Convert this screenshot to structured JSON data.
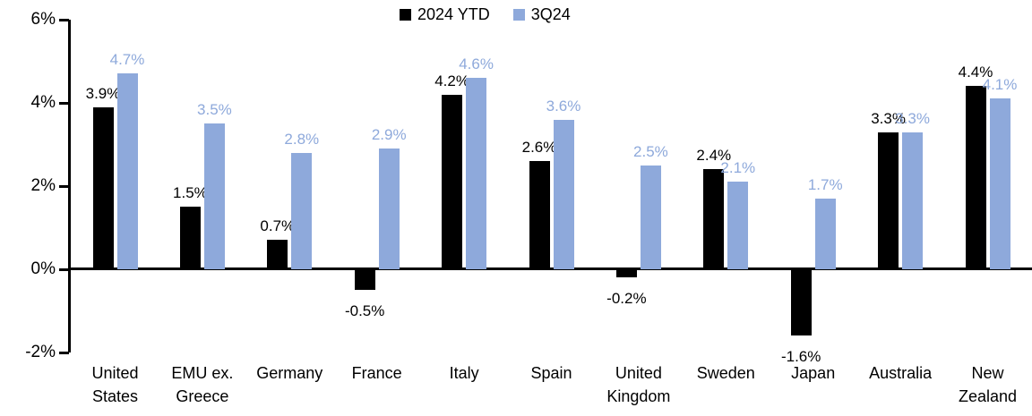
{
  "chart_data": {
    "type": "bar",
    "title": "",
    "xlabel": "",
    "ylabel": "",
    "categories": [
      "United States",
      "EMU ex. Greece",
      "Germany",
      "France",
      "Italy",
      "Spain",
      "United Kingdom",
      "Sweden",
      "Japan",
      "Australia",
      "New Zealand"
    ],
    "category_display": [
      "United\nStates",
      "EMU ex.\nGreece",
      "Germany",
      "France",
      "Italy",
      "Spain",
      "United\nKingdom",
      "Sweden",
      "Japan",
      "Australia",
      "New\nZealand"
    ],
    "series": [
      {
        "name": "2024 YTD",
        "color": "#000000",
        "values": [
          3.9,
          1.5,
          0.7,
          -0.5,
          4.2,
          2.6,
          -0.2,
          2.4,
          -1.6,
          3.3,
          4.4
        ],
        "labels": [
          "3.9%",
          "1.5%",
          "0.7%",
          "-0.5%",
          "4.2%",
          "2.6%",
          "-0.2%",
          "2.4%",
          "-1.6%",
          "3.3%",
          "4.4%"
        ]
      },
      {
        "name": "3Q24",
        "color": "#8EA9DB",
        "values": [
          4.7,
          3.5,
          2.8,
          2.9,
          4.6,
          3.6,
          2.5,
          2.1,
          1.7,
          3.3,
          4.1
        ],
        "labels": [
          "4.7%",
          "3.5%",
          "2.8%",
          "2.9%",
          "4.6%",
          "3.6%",
          "2.5%",
          "2.1%",
          "1.7%",
          "3.3%",
          "4.1%"
        ]
      }
    ],
    "ylim": [
      -2,
      6
    ],
    "yticks": [
      {
        "value": 6,
        "label": "6%"
      },
      {
        "value": 4,
        "label": "4%"
      },
      {
        "value": 2,
        "label": "2%"
      },
      {
        "value": 0,
        "label": "0%"
      },
      {
        "value": -2,
        "label": "-2%"
      }
    ],
    "grid": false,
    "legend_position": "top-center",
    "axis_color": "#000000",
    "background": "#FFFFFF"
  }
}
